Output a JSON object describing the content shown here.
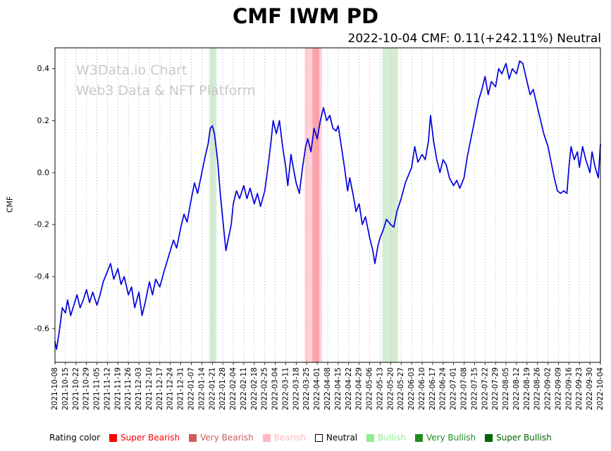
{
  "header": {
    "title": "CMF IWM PD",
    "subtitle": "2022-10-04 CMF: 0.11(+242.11%) Neutral"
  },
  "watermark": {
    "line1": "W3Data.io Chart",
    "line2": "Web3 Data & NFT Platform"
  },
  "legend": {
    "label": "Rating color",
    "items": [
      {
        "label": "Super Bearish",
        "color": "#ff0000"
      },
      {
        "label": "Very Bearish",
        "color": "#cd5c5c"
      },
      {
        "label": "Bearish",
        "color": "#ffb6c1"
      },
      {
        "label": "Neutral",
        "color": "#ffffff",
        "text_color": "#000000",
        "border": "#000000"
      },
      {
        "label": "Bullish",
        "color": "#90ee90"
      },
      {
        "label": "Very Bullish",
        "color": "#228b22"
      },
      {
        "label": "Super Bullish",
        "color": "#006400"
      }
    ]
  },
  "chart_data": {
    "type": "line",
    "title": "CMF IWM PD",
    "xlabel": "",
    "ylabel": "CMF",
    "ylim": [
      -0.73,
      0.48
    ],
    "yticks": [
      0.4,
      0.2,
      0.0,
      -0.2,
      -0.4,
      -0.6
    ],
    "grid": "vertical-dotted",
    "legend_position": "bottom",
    "line_color": "#0000e0",
    "x_unit": "week_index: 0 = first tick (2021-10-08), 1 unit per x tick",
    "x_tick_labels": [
      "2021-10-08",
      "2021-10-15",
      "2021-10-22",
      "2021-10-29",
      "2021-11-05",
      "2021-11-12",
      "2021-11-19",
      "2021-11-26",
      "2021-12-03",
      "2021-12-10",
      "2021-12-17",
      "2021-12-24",
      "2021-12-31",
      "2022-01-07",
      "2022-01-14",
      "2022-01-21",
      "2022-01-28",
      "2022-02-04",
      "2022-02-11",
      "2022-02-18",
      "2022-02-25",
      "2022-03-04",
      "2022-03-11",
      "2022-03-18",
      "2022-03-25",
      "2022-04-01",
      "2022-04-08",
      "2022-04-15",
      "2022-04-22",
      "2022-04-29",
      "2022-05-06",
      "2022-05-13",
      "2022-05-20",
      "2022-05-27",
      "2022-06-03",
      "2022-06-10",
      "2022-06-17",
      "2022-06-24",
      "2022-07-01",
      "2022-07-08",
      "2022-07-15",
      "2022-07-22",
      "2022-07-29",
      "2022-08-05",
      "2022-08-12",
      "2022-08-19",
      "2022-08-26",
      "2022-09-02",
      "2022-09-09",
      "2022-09-16",
      "2022-09-23",
      "2022-09-30",
      "2022-10-04"
    ],
    "bands": [
      {
        "name": "bullish-band-jan",
        "from": 14.7,
        "to": 15.4,
        "color": "rgba(60,170,60,0.22)"
      },
      {
        "name": "bearish-band-mar-apr",
        "from": 23.8,
        "to": 25.45,
        "color": "rgba(255,110,125,0.32)"
      },
      {
        "name": "bearish-band-core",
        "from": 24.55,
        "to": 25.2,
        "color": "rgba(250,60,80,0.30)"
      },
      {
        "name": "bullish-band-may",
        "from": 31.2,
        "to": 32.7,
        "color": "rgba(60,170,60,0.22)"
      }
    ],
    "last_point": {
      "date": "2022-10-04",
      "value": 0.11,
      "change_pct": "+242.11%",
      "rating": "Neutral"
    },
    "series": [
      {
        "name": "CMF",
        "points": [
          [
            0,
            -0.65
          ],
          [
            0.15,
            -0.68
          ],
          [
            0.45,
            -0.6
          ],
          [
            0.7,
            -0.52
          ],
          [
            1,
            -0.54
          ],
          [
            1.2,
            -0.49
          ],
          [
            1.5,
            -0.55
          ],
          [
            1.8,
            -0.51
          ],
          [
            2.1,
            -0.47
          ],
          [
            2.4,
            -0.52
          ],
          [
            2.7,
            -0.49
          ],
          [
            3,
            -0.45
          ],
          [
            3.3,
            -0.5
          ],
          [
            3.6,
            -0.46
          ],
          [
            4,
            -0.51
          ],
          [
            4.3,
            -0.47
          ],
          [
            4.6,
            -0.42
          ],
          [
            5,
            -0.38
          ],
          [
            5.3,
            -0.35
          ],
          [
            5.6,
            -0.41
          ],
          [
            6,
            -0.37
          ],
          [
            6.3,
            -0.43
          ],
          [
            6.6,
            -0.4
          ],
          [
            7,
            -0.47
          ],
          [
            7.3,
            -0.44
          ],
          [
            7.6,
            -0.52
          ],
          [
            8,
            -0.46
          ],
          [
            8.3,
            -0.55
          ],
          [
            8.6,
            -0.5
          ],
          [
            9,
            -0.42
          ],
          [
            9.3,
            -0.47
          ],
          [
            9.6,
            -0.41
          ],
          [
            10,
            -0.44
          ],
          [
            10.4,
            -0.38
          ],
          [
            10.7,
            -0.34
          ],
          [
            11,
            -0.3
          ],
          [
            11.3,
            -0.26
          ],
          [
            11.6,
            -0.29
          ],
          [
            12,
            -0.21
          ],
          [
            12.3,
            -0.16
          ],
          [
            12.6,
            -0.19
          ],
          [
            13,
            -0.1
          ],
          [
            13.3,
            -0.04
          ],
          [
            13.6,
            -0.08
          ],
          [
            14,
            0.0
          ],
          [
            14.3,
            0.06
          ],
          [
            14.6,
            0.11
          ],
          [
            14.8,
            0.17
          ],
          [
            15,
            0.18
          ],
          [
            15.2,
            0.15
          ],
          [
            15.5,
            0.05
          ],
          [
            15.8,
            -0.1
          ],
          [
            16.1,
            -0.22
          ],
          [
            16.3,
            -0.3
          ],
          [
            16.6,
            -0.24
          ],
          [
            16.8,
            -0.2
          ],
          [
            17,
            -0.12
          ],
          [
            17.3,
            -0.07
          ],
          [
            17.6,
            -0.1
          ],
          [
            18,
            -0.05
          ],
          [
            18.3,
            -0.1
          ],
          [
            18.6,
            -0.06
          ],
          [
            19,
            -0.12
          ],
          [
            19.3,
            -0.08
          ],
          [
            19.6,
            -0.13
          ],
          [
            20,
            -0.07
          ],
          [
            20.3,
            0.02
          ],
          [
            20.6,
            0.12
          ],
          [
            20.8,
            0.2
          ],
          [
            21.1,
            0.15
          ],
          [
            21.4,
            0.2
          ],
          [
            21.7,
            0.1
          ],
          [
            22,
            0.02
          ],
          [
            22.2,
            -0.05
          ],
          [
            22.5,
            0.07
          ],
          [
            22.8,
            0.0
          ],
          [
            23,
            -0.04
          ],
          [
            23.3,
            -0.08
          ],
          [
            23.6,
            0.02
          ],
          [
            23.9,
            0.1
          ],
          [
            24.1,
            0.13
          ],
          [
            24.4,
            0.08
          ],
          [
            24.7,
            0.17
          ],
          [
            25,
            0.13
          ],
          [
            25.3,
            0.2
          ],
          [
            25.6,
            0.25
          ],
          [
            25.9,
            0.2
          ],
          [
            26.2,
            0.22
          ],
          [
            26.5,
            0.17
          ],
          [
            26.8,
            0.16
          ],
          [
            27,
            0.18
          ],
          [
            27.3,
            0.1
          ],
          [
            27.6,
            0.02
          ],
          [
            27.9,
            -0.07
          ],
          [
            28.1,
            -0.02
          ],
          [
            28.4,
            -0.08
          ],
          [
            28.7,
            -0.15
          ],
          [
            29,
            -0.12
          ],
          [
            29.3,
            -0.2
          ],
          [
            29.6,
            -0.17
          ],
          [
            30,
            -0.25
          ],
          [
            30.3,
            -0.3
          ],
          [
            30.5,
            -0.35
          ],
          [
            30.8,
            -0.28
          ],
          [
            31,
            -0.25
          ],
          [
            31.3,
            -0.22
          ],
          [
            31.6,
            -0.18
          ],
          [
            32,
            -0.2
          ],
          [
            32.3,
            -0.21
          ],
          [
            32.6,
            -0.15
          ],
          [
            33,
            -0.1
          ],
          [
            33.4,
            -0.04
          ],
          [
            33.8,
            0.0
          ],
          [
            34,
            0.02
          ],
          [
            34.3,
            0.1
          ],
          [
            34.6,
            0.04
          ],
          [
            35,
            0.07
          ],
          [
            35.3,
            0.05
          ],
          [
            35.6,
            0.12
          ],
          [
            35.8,
            0.22
          ],
          [
            36.1,
            0.12
          ],
          [
            36.4,
            0.05
          ],
          [
            36.7,
            0.0
          ],
          [
            37,
            0.05
          ],
          [
            37.3,
            0.03
          ],
          [
            37.6,
            -0.02
          ],
          [
            38,
            -0.05
          ],
          [
            38.3,
            -0.03
          ],
          [
            38.6,
            -0.06
          ],
          [
            39,
            -0.02
          ],
          [
            39.3,
            0.06
          ],
          [
            39.6,
            0.12
          ],
          [
            40,
            0.2
          ],
          [
            40.4,
            0.28
          ],
          [
            40.7,
            0.32
          ],
          [
            41,
            0.37
          ],
          [
            41.3,
            0.3
          ],
          [
            41.6,
            0.35
          ],
          [
            42,
            0.33
          ],
          [
            42.3,
            0.4
          ],
          [
            42.6,
            0.38
          ],
          [
            43,
            0.42
          ],
          [
            43.3,
            0.36
          ],
          [
            43.6,
            0.4
          ],
          [
            44,
            0.38
          ],
          [
            44.3,
            0.43
          ],
          [
            44.6,
            0.42
          ],
          [
            45,
            0.35
          ],
          [
            45.3,
            0.3
          ],
          [
            45.6,
            0.32
          ],
          [
            46,
            0.25
          ],
          [
            46.3,
            0.2
          ],
          [
            46.6,
            0.15
          ],
          [
            47,
            0.1
          ],
          [
            47.3,
            0.04
          ],
          [
            47.6,
            -0.02
          ],
          [
            47.9,
            -0.07
          ],
          [
            48.2,
            -0.08
          ],
          [
            48.5,
            -0.07
          ],
          [
            48.8,
            -0.08
          ],
          [
            49,
            0.02
          ],
          [
            49.2,
            0.1
          ],
          [
            49.5,
            0.05
          ],
          [
            49.8,
            0.08
          ],
          [
            50,
            0.02
          ],
          [
            50.3,
            0.1
          ],
          [
            50.6,
            0.05
          ],
          [
            51,
            0.0
          ],
          [
            51.2,
            0.08
          ],
          [
            51.5,
            0.02
          ],
          [
            51.8,
            -0.02
          ],
          [
            52,
            0.11
          ]
        ]
      }
    ]
  }
}
